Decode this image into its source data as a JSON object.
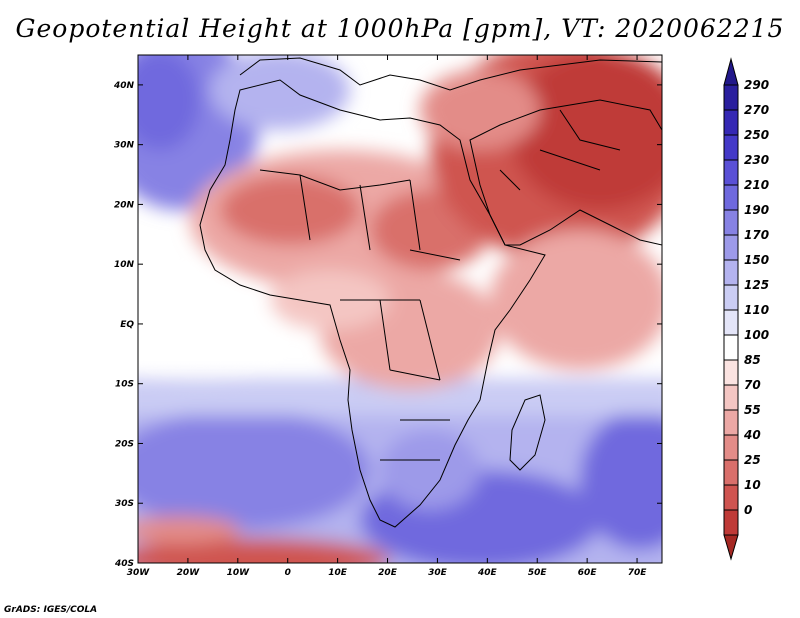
{
  "title": "Geopotential Height at 1000hPa [gpm], VT: 2020062215",
  "credit": "GrADS: IGES/COLA",
  "map": {
    "projection": "latlon",
    "lon_range": [
      -30,
      75
    ],
    "lat_range": [
      -40,
      45
    ],
    "lat_ticks": [
      {
        "value": 40,
        "label": "40N"
      },
      {
        "value": 30,
        "label": "30N"
      },
      {
        "value": 20,
        "label": "20N"
      },
      {
        "value": 10,
        "label": "10N"
      },
      {
        "value": 0,
        "label": "EQ"
      },
      {
        "value": -10,
        "label": "10S"
      },
      {
        "value": -20,
        "label": "20S"
      },
      {
        "value": -30,
        "label": "30S"
      },
      {
        "value": -40,
        "label": "40S"
      }
    ],
    "lon_ticks": [
      {
        "value": -30,
        "label": "30W"
      },
      {
        "value": -20,
        "label": "20W"
      },
      {
        "value": -10,
        "label": "10W"
      },
      {
        "value": 0,
        "label": "0"
      },
      {
        "value": 10,
        "label": "10E"
      },
      {
        "value": 20,
        "label": "20E"
      },
      {
        "value": 30,
        "label": "30E"
      },
      {
        "value": 40,
        "label": "40E"
      },
      {
        "value": 50,
        "label": "50E"
      },
      {
        "value": 60,
        "label": "60E"
      },
      {
        "value": 70,
        "label": "70E"
      }
    ]
  },
  "colorbar": {
    "levels": [
      {
        "label": "290",
        "color": "#2a1f9e"
      },
      {
        "label": "270",
        "color": "#3528b4"
      },
      {
        "label": "250",
        "color": "#4439c8"
      },
      {
        "label": "230",
        "color": "#5a50d6"
      },
      {
        "label": "210",
        "color": "#6f69de"
      },
      {
        "label": "190",
        "color": "#8782e4"
      },
      {
        "label": "170",
        "color": "#9d9ae9"
      },
      {
        "label": "150",
        "color": "#b4b3ef"
      },
      {
        "label": "125",
        "color": "#cbcdf4"
      },
      {
        "label": "110",
        "color": "#e4e5f8"
      },
      {
        "label": "100",
        "color": "#ffffff"
      },
      {
        "label": "85",
        "color": "#fbe3e1"
      },
      {
        "label": "70",
        "color": "#f4c6c3"
      },
      {
        "label": "55",
        "color": "#eca8a5"
      },
      {
        "label": "40",
        "color": "#e38c88"
      },
      {
        "label": "25",
        "color": "#d96f6b"
      },
      {
        "label": "10",
        "color": "#cf5450"
      },
      {
        "label": "0",
        "color": "#bf3a37"
      }
    ],
    "top_triangle_color": "#22188a",
    "bottom_triangle_color": "#a52823"
  }
}
